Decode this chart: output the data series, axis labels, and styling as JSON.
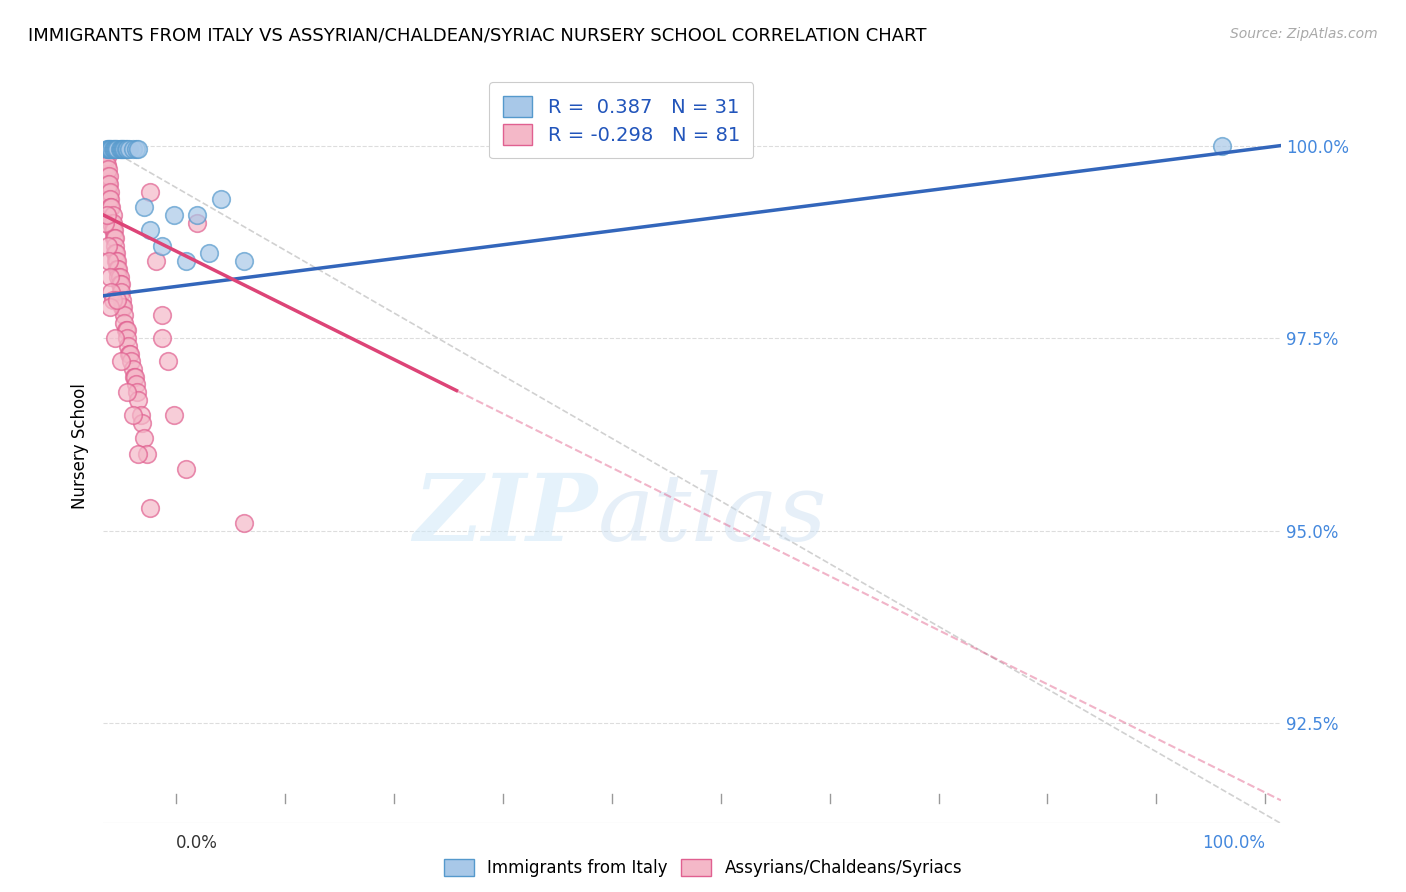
{
  "title": "IMMIGRANTS FROM ITALY VS ASSYRIAN/CHALDEAN/SYRIAC NURSERY SCHOOL CORRELATION CHART",
  "source": "Source: ZipAtlas.com",
  "ylabel": "Nursery School",
  "xmin": 0.0,
  "xmax": 100.0,
  "ymin": 91.2,
  "ymax": 101.0,
  "yticks": [
    92.5,
    95.0,
    97.5,
    100.0
  ],
  "ytick_labels": [
    "92.5%",
    "95.0%",
    "97.5%",
    "100.0%"
  ],
  "blue_color": "#a8c8e8",
  "pink_color": "#f4b8c8",
  "blue_edge": "#5599cc",
  "pink_edge": "#e06090",
  "blue_line_color": "#3366bb",
  "pink_line_color": "#dd4477",
  "diag_color": "#cccccc",
  "legend_label_blue": "Immigrants from Italy",
  "legend_label_pink": "Assyrians/Chaldeans/Syriacs",
  "watermark_zip": "ZIP",
  "watermark_atlas": "atlas",
  "blue_line_x0": 0.0,
  "blue_line_y0": 98.05,
  "blue_line_x1": 100.0,
  "blue_line_y1": 100.0,
  "pink_line_x0": 0.0,
  "pink_line_y0": 99.1,
  "pink_line_x1": 30.0,
  "pink_line_y1": 96.7,
  "pink_line_solid_x1": 30.0,
  "pink_line_dashed_x0": 30.0,
  "pink_line_dashed_x1": 100.0,
  "pink_line_dashed_y1": 91.5,
  "blue_scatter_x": [
    0.3,
    0.4,
    0.5,
    0.6,
    0.7,
    0.8,
    0.9,
    1.0,
    1.1,
    1.2,
    1.4,
    1.5,
    1.6,
    1.7,
    1.8,
    1.9,
    2.0,
    2.2,
    2.5,
    2.8,
    3.0,
    3.5,
    4.0,
    5.0,
    6.0,
    7.0,
    8.0,
    9.0,
    10.0,
    12.0,
    95.0
  ],
  "blue_scatter_y": [
    99.95,
    99.95,
    99.95,
    99.95,
    99.95,
    99.95,
    99.95,
    99.95,
    99.95,
    99.95,
    99.95,
    99.95,
    99.95,
    99.95,
    99.95,
    99.95,
    99.95,
    99.95,
    99.95,
    99.95,
    99.95,
    99.2,
    98.9,
    98.7,
    99.1,
    98.5,
    99.1,
    98.6,
    99.3,
    98.5,
    100.0
  ],
  "pink_scatter_x": [
    0.1,
    0.2,
    0.2,
    0.3,
    0.3,
    0.3,
    0.4,
    0.4,
    0.4,
    0.5,
    0.5,
    0.5,
    0.6,
    0.6,
    0.6,
    0.7,
    0.7,
    0.8,
    0.8,
    0.8,
    0.9,
    0.9,
    1.0,
    1.0,
    1.0,
    1.1,
    1.1,
    1.2,
    1.2,
    1.3,
    1.3,
    1.4,
    1.4,
    1.5,
    1.5,
    1.6,
    1.6,
    1.7,
    1.8,
    1.8,
    1.9,
    2.0,
    2.0,
    2.1,
    2.2,
    2.3,
    2.4,
    2.5,
    2.6,
    2.7,
    2.8,
    2.9,
    3.0,
    3.2,
    3.3,
    3.5,
    3.7,
    4.0,
    4.5,
    5.0,
    5.5,
    6.0,
    7.0,
    8.0,
    0.2,
    0.4,
    0.5,
    0.6,
    0.7,
    0.8,
    1.0,
    1.5,
    2.0,
    2.5,
    3.0,
    4.0,
    12.0,
    5.0,
    0.3,
    0.6,
    1.2
  ],
  "pink_scatter_y": [
    99.9,
    99.8,
    99.7,
    99.85,
    99.75,
    99.6,
    99.7,
    99.5,
    99.4,
    99.6,
    99.5,
    99.3,
    99.4,
    99.3,
    99.2,
    99.2,
    99.0,
    99.1,
    99.0,
    98.9,
    98.9,
    98.8,
    98.8,
    98.7,
    98.6,
    98.6,
    98.5,
    98.5,
    98.4,
    98.4,
    98.3,
    98.3,
    98.2,
    98.2,
    98.1,
    98.0,
    97.9,
    97.9,
    97.8,
    97.7,
    97.6,
    97.6,
    97.5,
    97.4,
    97.3,
    97.3,
    97.2,
    97.1,
    97.0,
    97.0,
    96.9,
    96.8,
    96.7,
    96.5,
    96.4,
    96.2,
    96.0,
    99.4,
    98.5,
    97.8,
    97.2,
    96.5,
    95.8,
    99.0,
    99.0,
    98.7,
    98.5,
    98.3,
    98.1,
    98.0,
    97.5,
    97.2,
    96.8,
    96.5,
    96.0,
    95.3,
    95.1,
    97.5,
    99.1,
    97.9,
    98.0
  ]
}
